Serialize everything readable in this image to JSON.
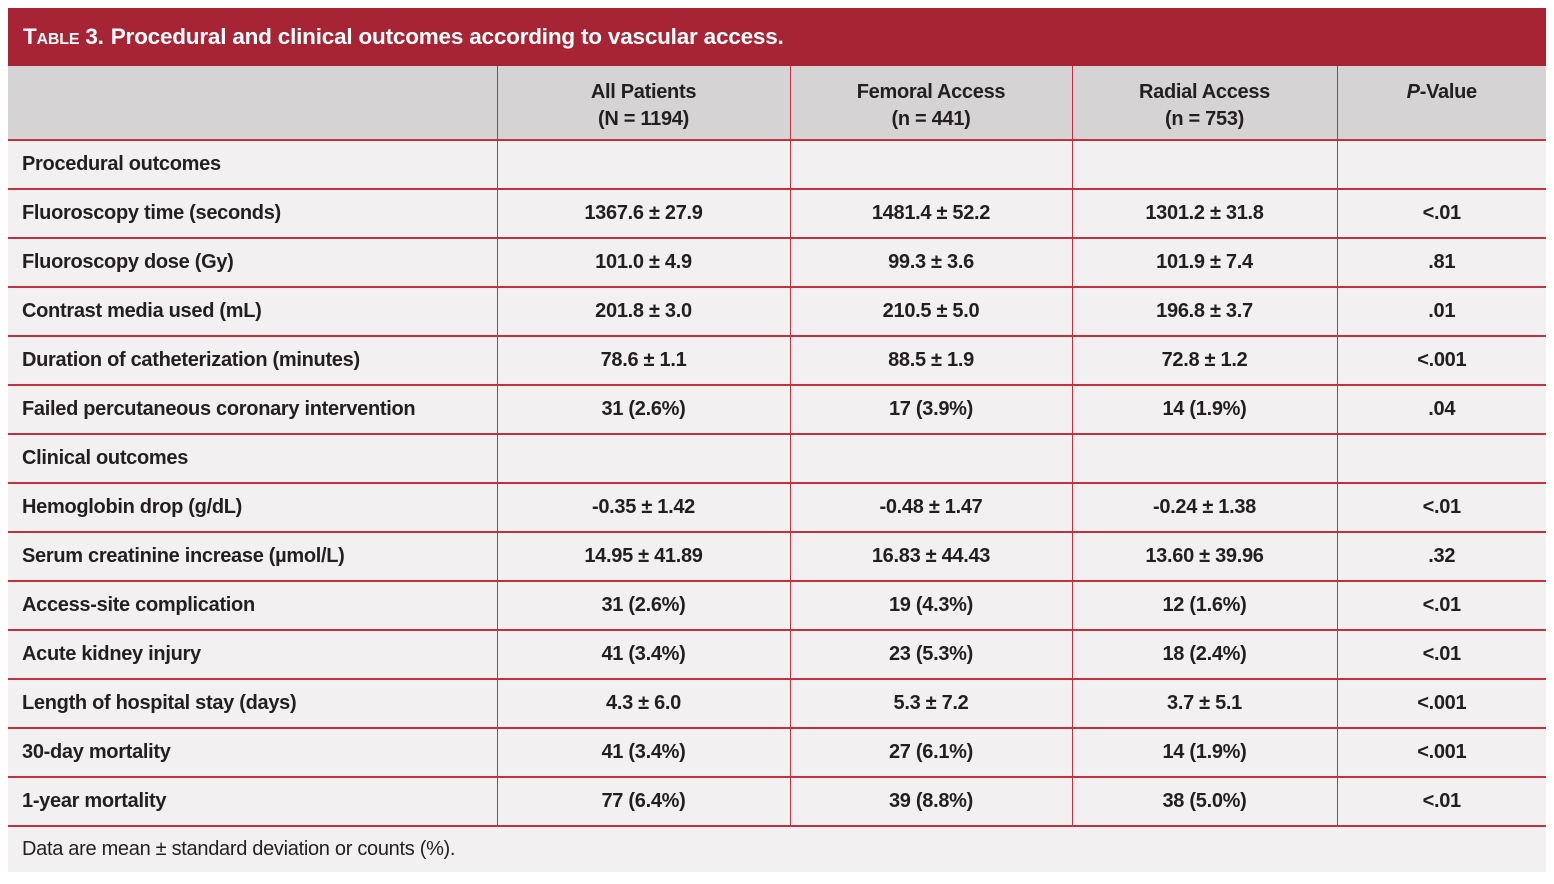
{
  "table": {
    "title": {
      "label": "Table 3.",
      "text": "Procedural and clinical outcomes according to vascular access."
    },
    "columns": [
      {
        "line1": "",
        "line2": ""
      },
      {
        "line1": "All Patients",
        "line2": "(N = 1194)"
      },
      {
        "line1": "Femoral Access",
        "line2": "(n = 441)"
      },
      {
        "line1": "Radial Access",
        "line2": "(n = 753)"
      },
      {
        "line1": "P-Value",
        "line2": ""
      }
    ],
    "rows": [
      {
        "type": "section",
        "label": "Procedural outcomes",
        "values": [
          "",
          "",
          "",
          ""
        ]
      },
      {
        "type": "data",
        "label": "Fluoroscopy time (seconds)",
        "values": [
          "1367.6 ± 27.9",
          "1481.4 ± 52.2",
          "1301.2 ± 31.8",
          "<.01"
        ]
      },
      {
        "type": "data",
        "label": "Fluoroscopy dose (Gy)",
        "values": [
          "101.0 ± 4.9",
          "99.3 ± 3.6",
          "101.9 ± 7.4",
          ".81"
        ]
      },
      {
        "type": "data",
        "label": "Contrast media used (mL)",
        "values": [
          "201.8 ± 3.0",
          "210.5 ± 5.0",
          "196.8 ± 3.7",
          ".01"
        ]
      },
      {
        "type": "data",
        "label": "Duration of catheterization (minutes)",
        "values": [
          "78.6 ± 1.1",
          "88.5 ± 1.9",
          "72.8 ± 1.2",
          "<.001"
        ]
      },
      {
        "type": "data",
        "label": "Failed percutaneous coronary intervention",
        "values": [
          "31 (2.6%)",
          "17 (3.9%)",
          "14 (1.9%)",
          ".04"
        ]
      },
      {
        "type": "section",
        "label": "Clinical outcomes",
        "values": [
          "",
          "",
          "",
          ""
        ]
      },
      {
        "type": "data",
        "label": "Hemoglobin drop (g/dL)",
        "values": [
          "-0.35 ± 1.42",
          "-0.48 ± 1.47",
          "-0.24 ± 1.38",
          "<.01"
        ]
      },
      {
        "type": "data",
        "label": "Serum creatinine increase (µmol/L)",
        "values": [
          "14.95 ± 41.89",
          "16.83 ± 44.43",
          "13.60 ± 39.96",
          ".32"
        ]
      },
      {
        "type": "data",
        "label": "Access-site complication",
        "values": [
          "31 (2.6%)",
          "19 (4.3%)",
          "12 (1.6%)",
          "<.01"
        ]
      },
      {
        "type": "data",
        "label": "Acute kidney injury",
        "values": [
          "41 (3.4%)",
          "23 (5.3%)",
          "18 (2.4%)",
          "<.01"
        ]
      },
      {
        "type": "data",
        "label": "Length of hospital stay (days)",
        "values": [
          "4.3 ± 6.0",
          "5.3 ± 7.2",
          "3.7 ± 5.1",
          "<.001"
        ]
      },
      {
        "type": "data",
        "label": "30-day mortality",
        "values": [
          "41 (3.4%)",
          "27 (6.1%)",
          "14 (1.9%)",
          "<.001"
        ]
      },
      {
        "type": "data",
        "label": "1-year mortality",
        "values": [
          "77 (6.4%)",
          "39 (8.8%)",
          "38 (5.0%)",
          "<.01"
        ]
      }
    ],
    "footnote": "Data are mean ± standard deviation or counts (%).",
    "colors": {
      "title_bar": "#a72434",
      "grid_lines": "#c1323f",
      "header_row_bg": "#d5d3d4",
      "cell_bg": "#f2f0f0",
      "text": "#231f20",
      "title_text": "#ffffff"
    }
  }
}
